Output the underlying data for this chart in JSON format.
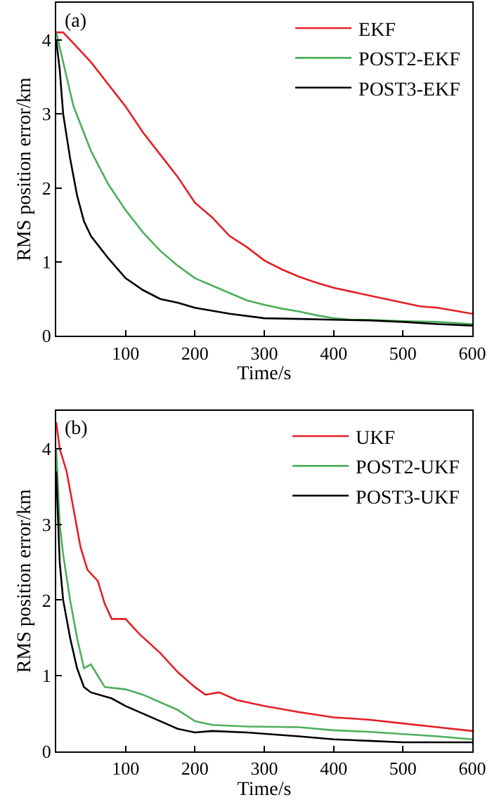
{
  "chart_data": [
    {
      "type": "line",
      "title": "(a)",
      "xlabel": "Time/s",
      "ylabel": "RMS position error/km",
      "xlim": [
        0,
        600
      ],
      "ylim": [
        0,
        4.5
      ],
      "xticks": [
        100,
        200,
        300,
        400,
        500,
        600
      ],
      "yticks": [
        0,
        1,
        2,
        3,
        4
      ],
      "legend": "top right",
      "line_style": "solid",
      "marker": "none",
      "series": [
        {
          "name": "EKF",
          "color": "#e41f26",
          "x": [
            0,
            10,
            25,
            50,
            75,
            100,
            125,
            150,
            175,
            200,
            225,
            250,
            275,
            300,
            325,
            350,
            375,
            400,
            425,
            450,
            475,
            500,
            525,
            550,
            575,
            600
          ],
          "values": [
            4.1,
            4.1,
            3.95,
            3.7,
            3.4,
            3.1,
            2.75,
            2.45,
            2.15,
            1.8,
            1.6,
            1.35,
            1.2,
            1.02,
            0.9,
            0.8,
            0.72,
            0.65,
            0.6,
            0.55,
            0.5,
            0.45,
            0.4,
            0.38,
            0.34,
            0.3
          ]
        },
        {
          "name": "POST2-EKF",
          "color": "#4daf5a",
          "x": [
            0,
            10,
            25,
            50,
            75,
            100,
            125,
            150,
            175,
            200,
            225,
            250,
            275,
            300,
            325,
            350,
            375,
            400,
            425,
            450,
            500,
            550,
            600
          ],
          "values": [
            4.1,
            3.7,
            3.1,
            2.5,
            2.05,
            1.7,
            1.4,
            1.15,
            0.95,
            0.78,
            0.68,
            0.58,
            0.48,
            0.42,
            0.37,
            0.33,
            0.28,
            0.24,
            0.22,
            0.22,
            0.2,
            0.19,
            0.16
          ]
        },
        {
          "name": "POST3-EKF",
          "color": "#000000",
          "x": [
            0,
            5,
            10,
            20,
            30,
            40,
            50,
            75,
            100,
            125,
            150,
            175,
            200,
            250,
            300,
            350,
            400,
            450,
            500,
            550,
            600
          ],
          "values": [
            4.0,
            3.6,
            3.0,
            2.4,
            1.9,
            1.55,
            1.35,
            1.05,
            0.78,
            0.62,
            0.5,
            0.45,
            0.38,
            0.3,
            0.24,
            0.23,
            0.22,
            0.21,
            0.19,
            0.16,
            0.14
          ]
        }
      ]
    },
    {
      "type": "line",
      "title": "(b)",
      "xlabel": "Time/s",
      "ylabel": "RMS position error/km",
      "xlim": [
        0,
        600
      ],
      "ylim": [
        0,
        4.5
      ],
      "xticks": [
        100,
        200,
        300,
        400,
        500,
        600
      ],
      "yticks": [
        0,
        1,
        2,
        3,
        4
      ],
      "legend": "top right",
      "line_style": "solid",
      "marker": "none",
      "series": [
        {
          "name": "UKF",
          "color": "#e41f26",
          "x": [
            0,
            5,
            15,
            25,
            35,
            45,
            60,
            70,
            80,
            100,
            120,
            150,
            175,
            200,
            215,
            235,
            260,
            300,
            350,
            400,
            450,
            500,
            550,
            600
          ],
          "values": [
            4.35,
            4.0,
            3.7,
            3.2,
            2.7,
            2.4,
            2.25,
            1.95,
            1.75,
            1.75,
            1.55,
            1.3,
            1.05,
            0.85,
            0.75,
            0.78,
            0.68,
            0.6,
            0.52,
            0.45,
            0.42,
            0.37,
            0.32,
            0.27
          ]
        },
        {
          "name": "POST2-UKF",
          "color": "#4daf5a",
          "x": [
            0,
            5,
            10,
            20,
            30,
            40,
            50,
            60,
            70,
            100,
            125,
            150,
            175,
            200,
            225,
            275,
            350,
            400,
            450,
            500,
            550,
            600
          ],
          "values": [
            4.0,
            3.0,
            2.6,
            2.0,
            1.5,
            1.1,
            1.15,
            1.0,
            0.85,
            0.82,
            0.75,
            0.65,
            0.55,
            0.4,
            0.35,
            0.33,
            0.32,
            0.28,
            0.26,
            0.23,
            0.2,
            0.16
          ]
        },
        {
          "name": "POST3-UKF",
          "color": "#000000",
          "x": [
            0,
            5,
            10,
            20,
            30,
            40,
            50,
            80,
            100,
            125,
            150,
            175,
            200,
            225,
            275,
            350,
            400,
            450,
            500,
            600
          ],
          "values": [
            3.7,
            2.5,
            2.0,
            1.5,
            1.1,
            0.85,
            0.78,
            0.7,
            0.6,
            0.5,
            0.4,
            0.3,
            0.25,
            0.27,
            0.25,
            0.2,
            0.16,
            0.14,
            0.12,
            0.12
          ]
        }
      ]
    }
  ]
}
